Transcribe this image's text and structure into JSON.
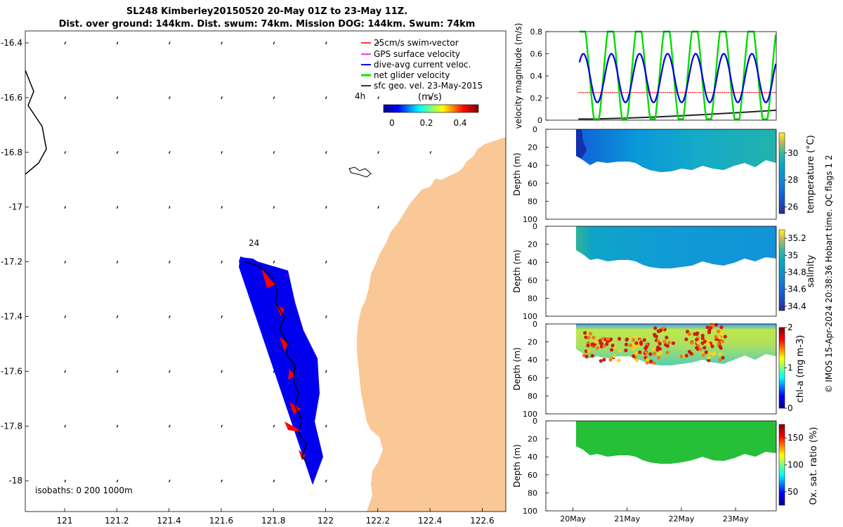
{
  "header": {
    "title": "SL248 Kimberley20150520 20-May 01Z to 23-May 11Z.",
    "subtitle": "Dist. over ground: 144km. Dist. swum: 74km. Mission DOG: 144km. Swum: 74km"
  },
  "map": {
    "lon_ticks": [
      "121",
      "121.2",
      "121.4",
      "121.6",
      "121.8",
      "122",
      "122.2",
      "122.4",
      "122.6"
    ],
    "lat_ticks": [
      "-16.4",
      "-16.6",
      "-16.8",
      "-17",
      "-17.2",
      "-17.4",
      "-17.6",
      "-17.8",
      "-18"
    ],
    "legend": [
      {
        "label": "25cm/s swim vector",
        "color": "#ff0000"
      },
      {
        "label": "GPS surface velocity",
        "color": "#ff00ff"
      },
      {
        "label": "dive-avg current veloc.",
        "color": "#0000ff"
      },
      {
        "label": "net glider velocity",
        "color": "#00ee00"
      },
      {
        "label": "sfc geo. vel. 23-May-2015",
        "color": "#000000"
      }
    ],
    "time_label": "4h",
    "colorbar_label": "(m/s)",
    "colorbar_ticks": [
      "0",
      "0.2",
      "0.4"
    ],
    "track_start_label": "24",
    "isobaths_label": "isobaths: 0   200  1000m",
    "land_color": "#f9c896"
  },
  "chart_data": [
    {
      "type": "line",
      "title": "",
      "ylabel": "velocity magnitude (m/s)",
      "ylim": [
        0,
        0.8
      ],
      "yticks": [
        "0",
        "0.2",
        "0.4",
        "0.6",
        "0.8"
      ],
      "xlim": [
        19.5,
        23.75
      ],
      "series": [
        {
          "name": "net glider velocity",
          "color": "#00dd00"
        },
        {
          "name": "dive-avg current veloc.",
          "color": "#0000dd"
        },
        {
          "name": "swim speed",
          "color": "#ff0000",
          "value": 0.25
        },
        {
          "name": "sfc geo. vel.",
          "color": "#222222",
          "start": 0.01,
          "end": 0.09
        }
      ]
    },
    {
      "type": "heatmap",
      "ylabel": "Depth (m)",
      "colorbar_label": "temperature (°C)",
      "ylim": [
        0,
        100
      ],
      "yticks": [
        "0",
        "20",
        "40",
        "60",
        "80",
        "100"
      ],
      "clim": [
        25.5,
        31.5
      ],
      "cticks": [
        "26",
        "28",
        "30"
      ],
      "colormap": "parula"
    },
    {
      "type": "heatmap",
      "ylabel": "Depth (m)",
      "colorbar_label": "salinity",
      "ylim": [
        0,
        100
      ],
      "yticks": [
        "0",
        "20",
        "40",
        "60",
        "80",
        "100"
      ],
      "clim": [
        34.35,
        35.3
      ],
      "cticks": [
        "34.4",
        "34.6",
        "34.8",
        "35",
        "35.2"
      ],
      "colormap": "parula"
    },
    {
      "type": "heatmap",
      "ylabel": "Depth (m)",
      "colorbar_label": "chl-a (mg m-3)",
      "ylim": [
        0,
        100
      ],
      "yticks": [
        "0",
        "20",
        "40",
        "60",
        "80",
        "100"
      ],
      "clim": [
        0,
        2
      ],
      "cticks": [
        "0",
        "1",
        "2"
      ],
      "colormap": "jet"
    },
    {
      "type": "heatmap",
      "ylabel": "Depth (m)",
      "colorbar_label": "Ox. sat. ratio (%)",
      "ylim": [
        0,
        100
      ],
      "yticks": [
        "0",
        "20",
        "40",
        "60",
        "80",
        "100"
      ],
      "clim": [
        25,
        175
      ],
      "cticks": [
        "50",
        "100",
        "150"
      ],
      "colormap": "jet",
      "xticks": [
        "20May",
        "21May",
        "22May",
        "23May"
      ]
    }
  ],
  "footer": {
    "watermark": "© IMOS 15-Apr-2024 20:38:36 Hobart time. QC flags 1  2"
  }
}
